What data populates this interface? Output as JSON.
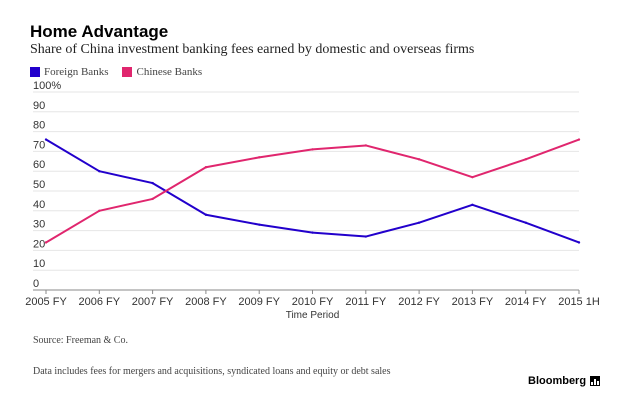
{
  "header": {
    "title": "Home Advantage",
    "subtitle": "Share of China investment banking fees earned by domestic and overseas firms"
  },
  "legend": [
    {
      "label": "Foreign Banks",
      "color": "#2200cc"
    },
    {
      "label": "Chinese Banks",
      "color": "#e0266e"
    }
  ],
  "chart_data": {
    "type": "line",
    "title": "Home Advantage",
    "xlabel": "Time Period",
    "ylabel": "",
    "ylim": [
      0,
      100
    ],
    "y_ticks": [
      "0",
      "10",
      "20",
      "30",
      "40",
      "50",
      "60",
      "70",
      "80",
      "90",
      "100%"
    ],
    "categories": [
      "2005 FY",
      "2006 FY",
      "2007 FY",
      "2008 FY",
      "2009 FY",
      "2010 FY",
      "2011 FY",
      "2012 FY",
      "2013 FY",
      "2014 FY",
      "2015 1H"
    ],
    "series": [
      {
        "name": "Foreign Banks",
        "color": "#2200cc",
        "values": [
          76,
          60,
          54,
          38,
          33,
          29,
          27,
          34,
          43,
          34,
          24
        ]
      },
      {
        "name": "Chinese Banks",
        "color": "#e0266e",
        "values": [
          24,
          40,
          46,
          62,
          67,
          71,
          73,
          66,
          57,
          66,
          76
        ]
      }
    ],
    "grid": true
  },
  "footer": {
    "source": "Source: Freeman & Co.",
    "note": "Data includes fees for mergers and acquisitions, syndicated loans and equity or debt sales",
    "brand": "Bloomberg"
  }
}
